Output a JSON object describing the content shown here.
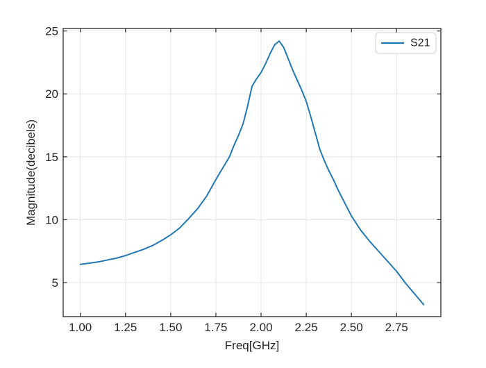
{
  "figure": {
    "background": "#ffffff"
  },
  "chart_data": {
    "type": "line",
    "title": "",
    "xlabel": "Freq[GHz]",
    "ylabel": "Magnitude(decibels)",
    "xlim": [
      0.905,
      2.995
    ],
    "ylim": [
      2.3,
      25.2
    ],
    "grid": true,
    "x_ticks": [
      1.0,
      1.25,
      1.5,
      1.75,
      2.0,
      2.25,
      2.5,
      2.75
    ],
    "x_tick_labels": [
      "1.00",
      "1.25",
      "1.50",
      "1.75",
      "2.00",
      "2.25",
      "2.50",
      "2.75"
    ],
    "y_ticks": [
      5,
      10,
      15,
      20,
      25
    ],
    "y_tick_labels": [
      "5",
      "10",
      "15",
      "20",
      "25"
    ],
    "legend": {
      "position": "upper right",
      "entries": [
        {
          "label": "S21",
          "color": "#1f77b4"
        }
      ]
    },
    "series": [
      {
        "name": "S21",
        "color": "#1f77b4",
        "x": [
          1.0,
          1.05,
          1.1,
          1.15,
          1.2,
          1.25,
          1.3,
          1.35,
          1.4,
          1.45,
          1.5,
          1.55,
          1.6,
          1.65,
          1.7,
          1.75,
          1.8,
          1.825,
          1.85,
          1.875,
          1.9,
          1.925,
          1.95,
          1.975,
          2.0,
          2.025,
          2.05,
          2.075,
          2.1,
          2.125,
          2.15,
          2.175,
          2.2,
          2.225,
          2.25,
          2.275,
          2.3,
          2.325,
          2.35,
          2.375,
          2.4,
          2.425,
          2.45,
          2.475,
          2.5,
          2.55,
          2.6,
          2.65,
          2.7,
          2.75,
          2.8,
          2.85,
          2.9
        ],
        "y": [
          6.45,
          6.55,
          6.65,
          6.8,
          6.95,
          7.15,
          7.4,
          7.65,
          7.95,
          8.35,
          8.8,
          9.35,
          10.1,
          10.9,
          11.9,
          13.2,
          14.4,
          15.0,
          15.9,
          16.7,
          17.6,
          19.0,
          20.6,
          21.2,
          21.7,
          22.4,
          23.2,
          23.9,
          24.2,
          23.7,
          22.8,
          21.9,
          21.1,
          20.3,
          19.4,
          18.2,
          16.9,
          15.6,
          14.7,
          13.9,
          13.2,
          12.4,
          11.7,
          11.0,
          10.3,
          9.2,
          8.3,
          7.5,
          6.7,
          5.9,
          4.95,
          4.1,
          3.25
        ]
      }
    ]
  },
  "style": {
    "line_color": "#1f77b4",
    "grid_color": "#e5e5e5",
    "spine_color": "#262626",
    "text_color": "#242424",
    "legend_border_color": "#d0d0d0",
    "legend_fill": "#ffffff"
  }
}
